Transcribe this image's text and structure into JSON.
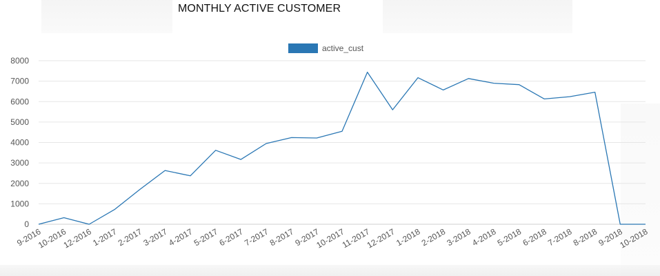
{
  "chart_data": {
    "type": "line",
    "title": "MONTHLY ACTIVE CUSTOMER",
    "xlabel": "",
    "ylabel": "",
    "ylim": [
      0,
      8000
    ],
    "yticks": [
      0,
      1000,
      2000,
      3000,
      4000,
      5000,
      6000,
      7000,
      8000
    ],
    "grid": true,
    "legend_position": "top",
    "categories": [
      "9-2016",
      "10-2016",
      "12-2016",
      "1-2017",
      "2-2017",
      "3-2017",
      "4-2017",
      "5-2017",
      "6-2017",
      "7-2017",
      "8-2017",
      "9-2017",
      "10-2017",
      "11-2017",
      "12-2017",
      "1-2018",
      "2-2018",
      "3-2018",
      "4-2018",
      "5-2018",
      "6-2018",
      "7-2018",
      "8-2018",
      "9-2018",
      "10-2018"
    ],
    "series": [
      {
        "name": "active_cust",
        "color": "#2a77b4",
        "values": [
          0,
          320,
          0,
          720,
          1700,
          2630,
          2370,
          3620,
          3170,
          3950,
          4240,
          4220,
          4550,
          7440,
          5600,
          7170,
          6570,
          7130,
          6900,
          6830,
          6130,
          6240,
          6460,
          0,
          0
        ]
      }
    ]
  }
}
